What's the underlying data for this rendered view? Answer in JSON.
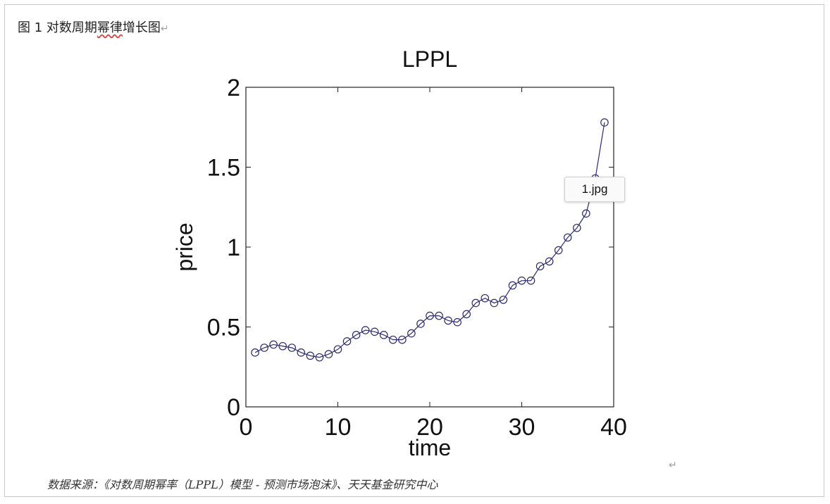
{
  "document": {
    "caption_prefix": "图",
    "caption_number": "1",
    "caption_text_a": "对数周期",
    "caption_text_b": "幂律",
    "caption_text_c": "增长图",
    "paragraph_mark": "↵",
    "source_text": "数据来源：《对数周期幂率（LPPL）模型 - 预测市场泡沫》、天天基金研究中心",
    "tooltip": "1.jpg"
  },
  "chart_data": {
    "type": "line",
    "title": "LPPL",
    "xlabel": "time",
    "ylabel": "price",
    "xlim": [
      0,
      40
    ],
    "ylim": [
      0,
      2
    ],
    "xticks": [
      "0",
      "10",
      "20",
      "30",
      "40"
    ],
    "yticks": [
      "0",
      "0.5",
      "1",
      "1.5",
      "2"
    ],
    "marker": "circle",
    "line_color": "#2c2c6e",
    "grid": false,
    "series": [
      {
        "x": [
          1,
          2,
          3,
          4,
          5,
          6,
          7,
          8,
          9,
          10,
          11,
          12,
          13,
          14,
          15,
          16,
          17,
          18,
          19,
          20,
          21,
          22,
          23,
          24,
          25,
          26,
          27,
          28,
          29,
          30,
          31,
          32,
          33,
          34,
          35,
          36,
          37,
          38,
          39
        ],
        "values": [
          0.34,
          0.37,
          0.39,
          0.38,
          0.37,
          0.34,
          0.32,
          0.31,
          0.33,
          0.36,
          0.41,
          0.45,
          0.48,
          0.47,
          0.45,
          0.42,
          0.42,
          0.46,
          0.52,
          0.57,
          0.57,
          0.54,
          0.53,
          0.58,
          0.65,
          0.68,
          0.65,
          0.67,
          0.76,
          0.79,
          0.79,
          0.88,
          0.91,
          0.98,
          1.06,
          1.12,
          1.21,
          1.43,
          1.78
        ]
      }
    ]
  }
}
